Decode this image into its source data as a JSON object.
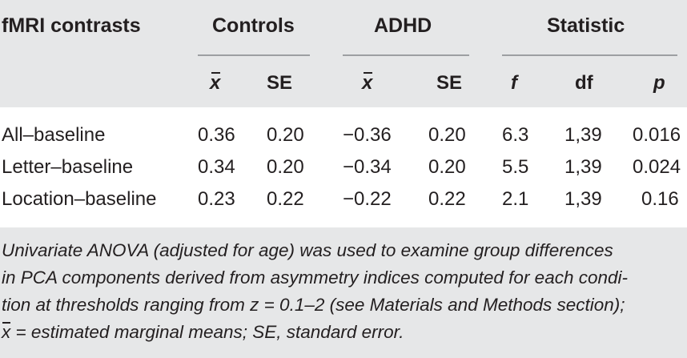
{
  "table": {
    "col_contrasts": "fMRI contrasts",
    "group_controls": "Controls",
    "group_adhd": "ADHD",
    "group_statistic": "Statistic",
    "sub_mean": "x",
    "sub_se": "SE",
    "sub_f": "f",
    "sub_df": "df",
    "sub_p": "p",
    "rows": [
      {
        "label": "All–baseline",
        "ctrl_mean": "0.36",
        "ctrl_se": "0.20",
        "adhd_mean": "−0.36",
        "adhd_se": "0.20",
        "f": "6.3",
        "df": "1,39",
        "p": "0.016"
      },
      {
        "label": "Letter–baseline",
        "ctrl_mean": "0.34",
        "ctrl_se": "0.20",
        "adhd_mean": "−0.34",
        "adhd_se": "0.20",
        "f": "5.5",
        "df": "1,39",
        "p": "0.024"
      },
      {
        "label": "Location–baseline",
        "ctrl_mean": "0.23",
        "ctrl_se": "0.22",
        "adhd_mean": "−0.22",
        "adhd_se": "0.22",
        "f": "2.1",
        "df": "1,39",
        "p": "0.16"
      }
    ]
  },
  "footnote": {
    "line1": "Univariate ANOVA (adjusted for age) was used to examine group differences",
    "line2": "in PCA components derived from asymmetry indices computed for each condi-",
    "line3": "tion at thresholds ranging from z = 0.1–2 (see Materials and Methods section);",
    "line4_symbol": "x",
    "line4_rest": " = estimated marginal means; SE, standard error."
  },
  "colors": {
    "header_background": "#e6e7e8",
    "body_background": "#ffffff",
    "text": "#231f20",
    "rule": "#9d9fa2"
  }
}
